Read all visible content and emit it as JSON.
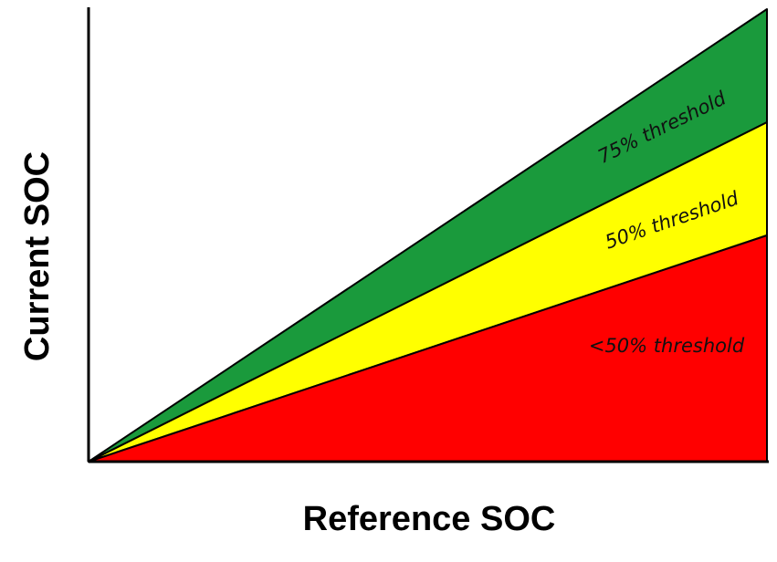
{
  "chart_data": {
    "type": "area",
    "xlabel": "Reference SOC",
    "ylabel": "Current SOC",
    "zones": [
      {
        "label": "75% threshold",
        "color": "#1a9a3c",
        "upper_ratio": 1.0,
        "lower_ratio": 0.75
      },
      {
        "label": "50% threshold",
        "color": "#ffff00",
        "upper_ratio": 0.75,
        "lower_ratio": 0.5
      },
      {
        "label": "<50% threshold",
        "color": "#ff0000",
        "upper_ratio": 0.5,
        "lower_ratio": 0.0
      }
    ]
  }
}
